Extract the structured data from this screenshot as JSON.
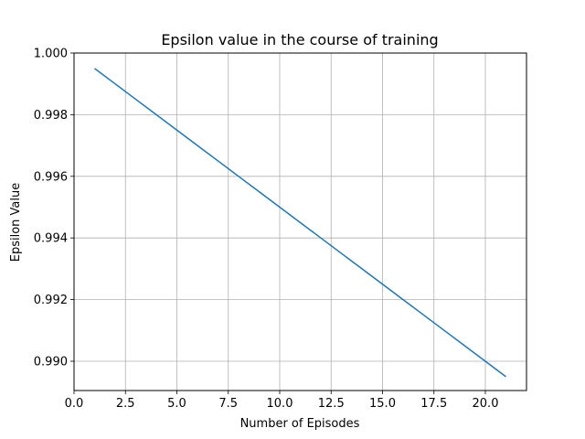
{
  "chart_data": {
    "type": "line",
    "title": "Epsilon value in the course of training",
    "xlabel": "Number of Episodes",
    "ylabel": "Epsilon Value",
    "xlim": [
      0.0,
      22.0
    ],
    "ylim": [
      0.98905,
      1.0
    ],
    "grid": true,
    "xticks": [
      {
        "value": 0.0,
        "label": "0.0"
      },
      {
        "value": 2.5,
        "label": "2.5"
      },
      {
        "value": 5.0,
        "label": "5.0"
      },
      {
        "value": 7.5,
        "label": "7.5"
      },
      {
        "value": 10.0,
        "label": "10.0"
      },
      {
        "value": 12.5,
        "label": "12.5"
      },
      {
        "value": 15.0,
        "label": "15.0"
      },
      {
        "value": 17.5,
        "label": "17.5"
      },
      {
        "value": 20.0,
        "label": "20.0"
      }
    ],
    "yticks": [
      {
        "value": 0.99,
        "label": "0.990"
      },
      {
        "value": 0.992,
        "label": "0.992"
      },
      {
        "value": 0.994,
        "label": "0.994"
      },
      {
        "value": 0.996,
        "label": "0.996"
      },
      {
        "value": 0.998,
        "label": "0.998"
      },
      {
        "value": 1.0,
        "label": "1.000"
      }
    ],
    "series": [
      {
        "color": "#1f77b4",
        "x": [
          1,
          2,
          3,
          4,
          5,
          6,
          7,
          8,
          9,
          10,
          11,
          12,
          13,
          14,
          15,
          16,
          17,
          18,
          19,
          20,
          21
        ],
        "y": [
          0.9995,
          0.999,
          0.9985,
          0.998,
          0.9975,
          0.997,
          0.9965,
          0.996,
          0.9955,
          0.995,
          0.9945,
          0.994,
          0.9935,
          0.993,
          0.9925,
          0.992,
          0.9915,
          0.991,
          0.9905,
          0.99,
          0.9895
        ]
      }
    ]
  }
}
